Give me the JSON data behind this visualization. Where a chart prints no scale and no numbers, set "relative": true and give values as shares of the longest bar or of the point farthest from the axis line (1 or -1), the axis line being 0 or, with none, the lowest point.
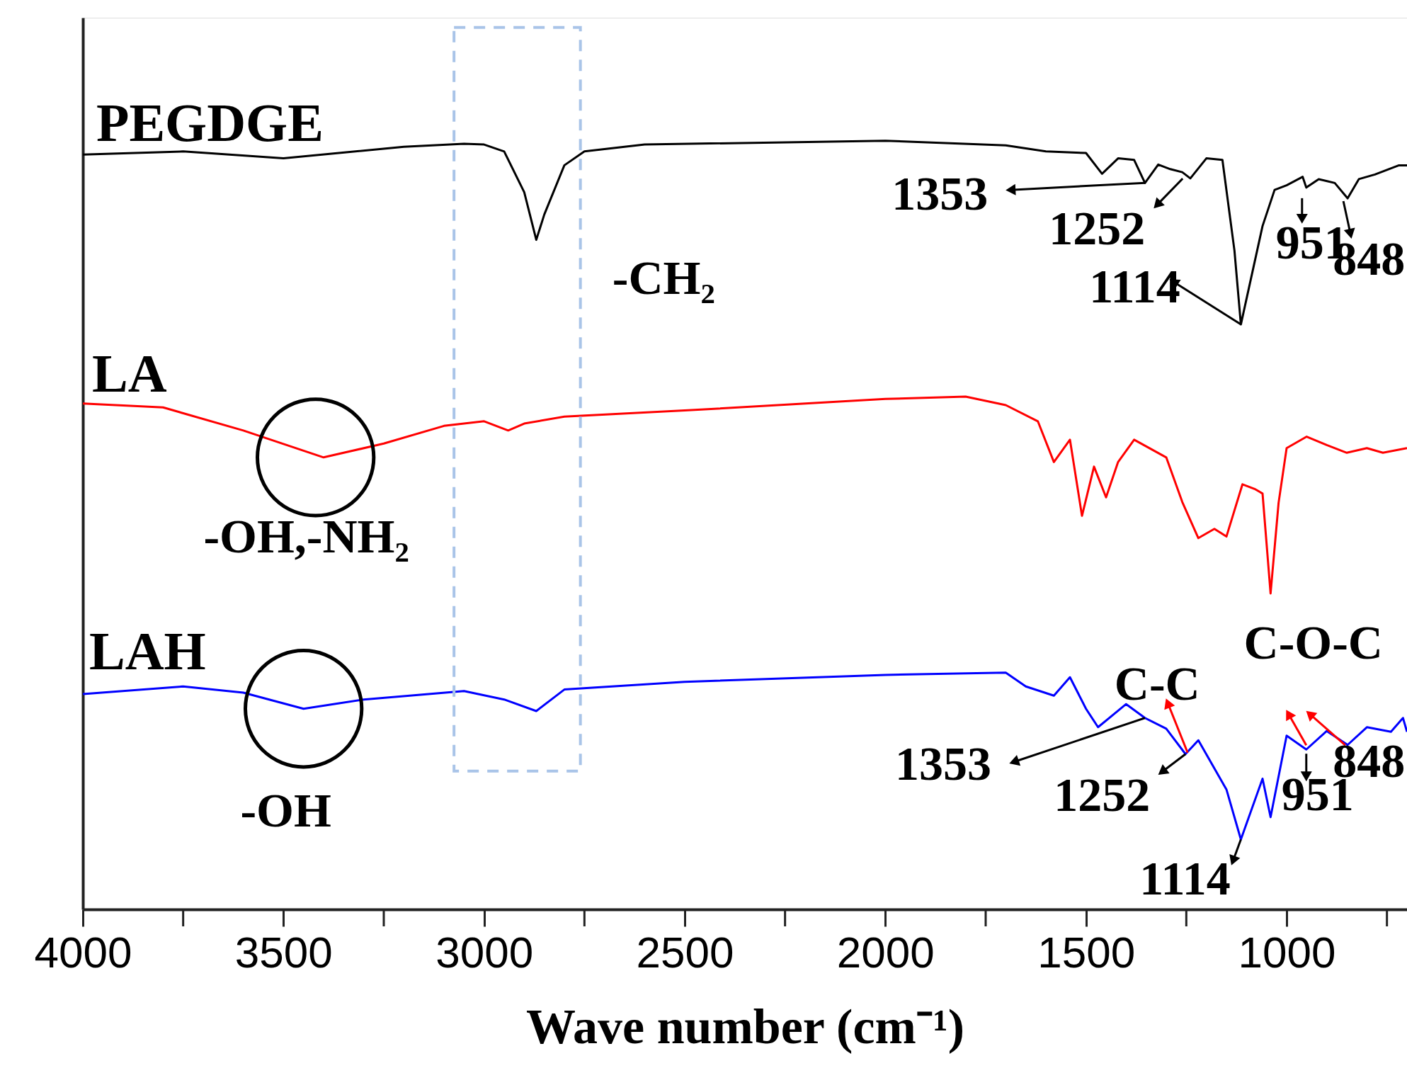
{
  "chart_data": {
    "type": "line",
    "xlabel": "Wave number (cm⁻¹)",
    "relative": true,
    "grid": false,
    "xlim": [
      4000,
      700
    ],
    "xticks": [
      4000,
      3500,
      3000,
      2500,
      2000,
      1500,
      1000
    ],
    "series": [
      {
        "name": "PEGDGE",
        "color": "#000000",
        "x": [
          4000,
          3750,
          3500,
          3200,
          3050,
          3000,
          2950,
          2900,
          2870,
          2850,
          2800,
          2750,
          2600,
          2000,
          1700,
          1600,
          1500,
          1460,
          1420,
          1380,
          1353,
          1320,
          1290,
          1260,
          1240,
          1200,
          1160,
          1130,
          1114,
          1060,
          1030,
          1000,
          960,
          951,
          920,
          880,
          848,
          820,
          780,
          720,
          700
        ],
        "values": [
          0.982,
          0.986,
          0.977,
          0.992,
          0.996,
          0.995,
          0.986,
          0.933,
          0.871,
          0.904,
          0.968,
          0.986,
          0.995,
          1.0,
          0.994,
          0.986,
          0.984,
          0.957,
          0.977,
          0.975,
          0.945,
          0.969,
          0.963,
          0.959,
          0.951,
          0.977,
          0.975,
          0.857,
          0.761,
          0.889,
          0.936,
          0.942,
          0.953,
          0.939,
          0.95,
          0.945,
          0.925,
          0.95,
          0.956,
          0.968,
          0.968
        ]
      },
      {
        "name": "LA",
        "color": "#ff0000",
        "x": [
          4000,
          3800,
          3600,
          3400,
          3250,
          3100,
          3000,
          2940,
          2900,
          2800,
          2500,
          2000,
          1800,
          1700,
          1620,
          1580,
          1540,
          1510,
          1480,
          1450,
          1420,
          1380,
          1300,
          1260,
          1220,
          1180,
          1150,
          1110,
          1080,
          1060,
          1040,
          1020,
          1000,
          950,
          900,
          850,
          800,
          760,
          700
        ],
        "values": [
          0.658,
          0.653,
          0.623,
          0.588,
          0.606,
          0.629,
          0.635,
          0.623,
          0.632,
          0.641,
          0.649,
          0.664,
          0.667,
          0.656,
          0.635,
          0.582,
          0.611,
          0.512,
          0.576,
          0.536,
          0.582,
          0.611,
          0.588,
          0.53,
          0.483,
          0.495,
          0.485,
          0.553,
          0.547,
          0.541,
          0.411,
          0.529,
          0.6,
          0.615,
          0.604,
          0.594,
          0.6,
          0.594,
          0.6
        ]
      },
      {
        "name": "LAH",
        "color": "#0000ff",
        "x": [
          4000,
          3750,
          3600,
          3450,
          3300,
          3050,
          2950,
          2870,
          2800,
          2500,
          2000,
          1700,
          1650,
          1580,
          1540,
          1500,
          1470,
          1400,
          1353,
          1300,
          1252,
          1220,
          1150,
          1114,
          1060,
          1040,
          1000,
          951,
          900,
          848,
          800,
          740,
          710,
          700
        ],
        "values": [
          0.28,
          0.29,
          0.282,
          0.261,
          0.273,
          0.284,
          0.273,
          0.258,
          0.286,
          0.296,
          0.305,
          0.308,
          0.29,
          0.278,
          0.302,
          0.261,
          0.237,
          0.267,
          0.249,
          0.235,
          0.202,
          0.22,
          0.156,
          0.091,
          0.17,
          0.12,
          0.226,
          0.208,
          0.232,
          0.214,
          0.237,
          0.231,
          0.249,
          0.231
        ]
      }
    ],
    "annotations": [
      {
        "text": "-CH₂",
        "x": 2870,
        "y": 0.871
      },
      {
        "text": "-OH,-NH₂",
        "x": 3420,
        "y": 0.588
      },
      {
        "text": "-OH",
        "x": 3450,
        "y": 0.261
      },
      "1353",
      {
        "text": "1252",
        "x": 1252,
        "y": 0.959
      },
      {
        "text": "1114",
        "x": 1114,
        "y": 0.761
      },
      {
        "text": "951",
        "x": 951,
        "y": 0.939
      },
      {
        "text": "848",
        "x": 848,
        "y": 0.925
      },
      {
        "text": "1353",
        "x": 1353,
        "y": 0.249
      },
      {
        "text": "1252",
        "x": 1252,
        "y": 0.202
      },
      {
        "text": "1114",
        "x": 1114,
        "y": 0.091
      },
      {
        "text": "951",
        "x": 951,
        "y": 0.208
      },
      {
        "text": "848",
        "x": 848,
        "y": 0.214
      },
      {
        "text": "C-C",
        "x": 1252,
        "y": 0.202
      },
      {
        "text": "C-O-C",
        "x": 951,
        "y": 0.208
      }
    ]
  }
}
